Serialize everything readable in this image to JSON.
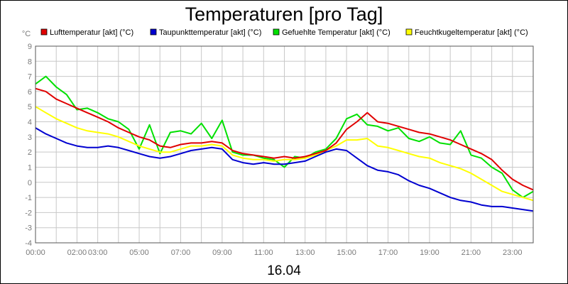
{
  "chart_data": {
    "type": "line",
    "title": "Temperaturen [pro Tag]",
    "unit_label": "°C",
    "date_label": "16.04",
    "xlabel": "",
    "ylabel": "",
    "grid": true,
    "legend_position": "top",
    "xlim": [
      0,
      24
    ],
    "ylim": [
      -4,
      9
    ],
    "y_ticks": [
      "9",
      "8",
      "7",
      "6",
      "5",
      "4",
      "3",
      "2",
      "1",
      "0",
      "-1",
      "-2",
      "-3",
      "-4"
    ],
    "x_ticks": [
      {
        "label": "00:00",
        "hour": 0
      },
      {
        "label": "02:00",
        "hour": 2
      },
      {
        "label": "03:00",
        "hour": 3
      },
      {
        "label": "05:00",
        "hour": 5
      },
      {
        "label": "07:00",
        "hour": 7
      },
      {
        "label": "09:00",
        "hour": 9
      },
      {
        "label": "11:00",
        "hour": 11
      },
      {
        "label": "13:00",
        "hour": 13
      },
      {
        "label": "15:00",
        "hour": 15
      },
      {
        "label": "17:00",
        "hour": 17
      },
      {
        "label": "19:00",
        "hour": 19
      },
      {
        "label": "21:00",
        "hour": 21
      },
      {
        "label": "23:00",
        "hour": 23
      }
    ],
    "series": [
      {
        "name": "Lufttemperatur [akt] (°C)",
        "color": "#e00000",
        "x": [
          0,
          0.5,
          1,
          1.5,
          2,
          2.5,
          3,
          3.5,
          4,
          4.5,
          5,
          5.5,
          6,
          6.5,
          7,
          7.5,
          8,
          8.5,
          9,
          9.5,
          10,
          10.5,
          11,
          11.5,
          12,
          12.5,
          13,
          13.5,
          14,
          14.5,
          15,
          15.5,
          16,
          16.5,
          17,
          17.5,
          18,
          18.5,
          19,
          19.5,
          20,
          20.5,
          21,
          21.5,
          22,
          22.5,
          23,
          23.5,
          24
        ],
        "values": [
          6.2,
          6.0,
          5.5,
          5.2,
          4.9,
          4.6,
          4.3,
          4.0,
          3.6,
          3.3,
          3.0,
          2.8,
          2.4,
          2.3,
          2.5,
          2.6,
          2.6,
          2.7,
          2.6,
          2.1,
          1.9,
          1.8,
          1.7,
          1.6,
          1.7,
          1.6,
          1.7,
          1.9,
          2.1,
          2.6,
          3.5,
          4.0,
          4.6,
          4.0,
          3.9,
          3.7,
          3.5,
          3.3,
          3.2,
          3.0,
          2.8,
          2.5,
          2.2,
          1.9,
          1.5,
          0.8,
          0.2,
          -0.2,
          -0.5
        ]
      },
      {
        "name": "Taupunkttemperatur [akt] (°C)",
        "color": "#0000d0",
        "x": [
          0,
          0.5,
          1,
          1.5,
          2,
          2.5,
          3,
          3.5,
          4,
          4.5,
          5,
          5.5,
          6,
          6.5,
          7,
          7.5,
          8,
          8.5,
          9,
          9.5,
          10,
          10.5,
          11,
          11.5,
          12,
          12.5,
          13,
          13.5,
          14,
          14.5,
          15,
          15.5,
          16,
          16.5,
          17,
          17.5,
          18,
          18.5,
          19,
          19.5,
          20,
          20.5,
          21,
          21.5,
          22,
          22.5,
          23,
          23.5,
          24
        ],
        "values": [
          3.6,
          3.2,
          2.9,
          2.6,
          2.4,
          2.3,
          2.3,
          2.4,
          2.3,
          2.1,
          1.9,
          1.7,
          1.6,
          1.7,
          1.9,
          2.1,
          2.2,
          2.3,
          2.2,
          1.5,
          1.3,
          1.2,
          1.3,
          1.2,
          1.2,
          1.3,
          1.4,
          1.7,
          2.0,
          2.2,
          2.1,
          1.6,
          1.1,
          0.8,
          0.7,
          0.5,
          0.1,
          -0.2,
          -0.4,
          -0.7,
          -1.0,
          -1.2,
          -1.3,
          -1.5,
          -1.6,
          -1.6,
          -1.7,
          -1.8,
          -1.9
        ]
      },
      {
        "name": "Gefuehlte Temperatur [akt] (°C)",
        "color": "#00e000",
        "x": [
          0,
          0.5,
          1,
          1.5,
          2,
          2.5,
          3,
          3.5,
          4,
          4.5,
          5,
          5.5,
          6,
          6.5,
          7,
          7.5,
          8,
          8.5,
          9,
          9.5,
          10,
          10.5,
          11,
          11.5,
          12,
          12.5,
          13,
          13.5,
          14,
          14.5,
          15,
          15.5,
          16,
          16.5,
          17,
          17.5,
          18,
          18.5,
          19,
          19.5,
          20,
          20.5,
          21,
          21.5,
          22,
          22.5,
          23,
          23.5,
          24
        ],
        "values": [
          6.5,
          7.0,
          6.3,
          5.8,
          4.8,
          4.9,
          4.6,
          4.2,
          4.0,
          3.5,
          2.2,
          3.8,
          1.9,
          3.3,
          3.4,
          3.2,
          3.9,
          2.9,
          4.1,
          2.0,
          1.8,
          1.8,
          1.6,
          1.5,
          1.0,
          1.7,
          1.6,
          2.0,
          2.2,
          2.9,
          4.2,
          4.5,
          3.8,
          3.7,
          3.4,
          3.6,
          2.9,
          2.7,
          3.0,
          2.6,
          2.5,
          3.4,
          1.8,
          1.6,
          1.0,
          0.6,
          -0.5,
          -1.0,
          -0.6
        ]
      },
      {
        "name": "Feuchtkugeltemperatur [akt] (°C)",
        "color": "#ffff00",
        "x": [
          0,
          0.5,
          1,
          1.5,
          2,
          2.5,
          3,
          3.5,
          4,
          4.5,
          5,
          5.5,
          6,
          6.5,
          7,
          7.5,
          8,
          8.5,
          9,
          9.5,
          10,
          10.5,
          11,
          11.5,
          12,
          12.5,
          13,
          13.5,
          14,
          14.5,
          15,
          15.5,
          16,
          16.5,
          17,
          17.5,
          18,
          18.5,
          19,
          19.5,
          20,
          20.5,
          21,
          21.5,
          22,
          22.5,
          23,
          23.5,
          24
        ],
        "values": [
          5.0,
          4.6,
          4.2,
          3.9,
          3.6,
          3.4,
          3.3,
          3.2,
          3.0,
          2.7,
          2.4,
          2.2,
          2.0,
          2.0,
          2.2,
          2.4,
          2.4,
          2.5,
          2.4,
          1.8,
          1.6,
          1.5,
          1.5,
          1.4,
          1.5,
          1.5,
          1.6,
          1.8,
          2.1,
          2.4,
          2.8,
          2.8,
          2.9,
          2.4,
          2.3,
          2.1,
          1.9,
          1.7,
          1.6,
          1.3,
          1.1,
          0.9,
          0.6,
          0.2,
          -0.2,
          -0.6,
          -0.8,
          -1.0,
          -1.2
        ]
      }
    ]
  }
}
